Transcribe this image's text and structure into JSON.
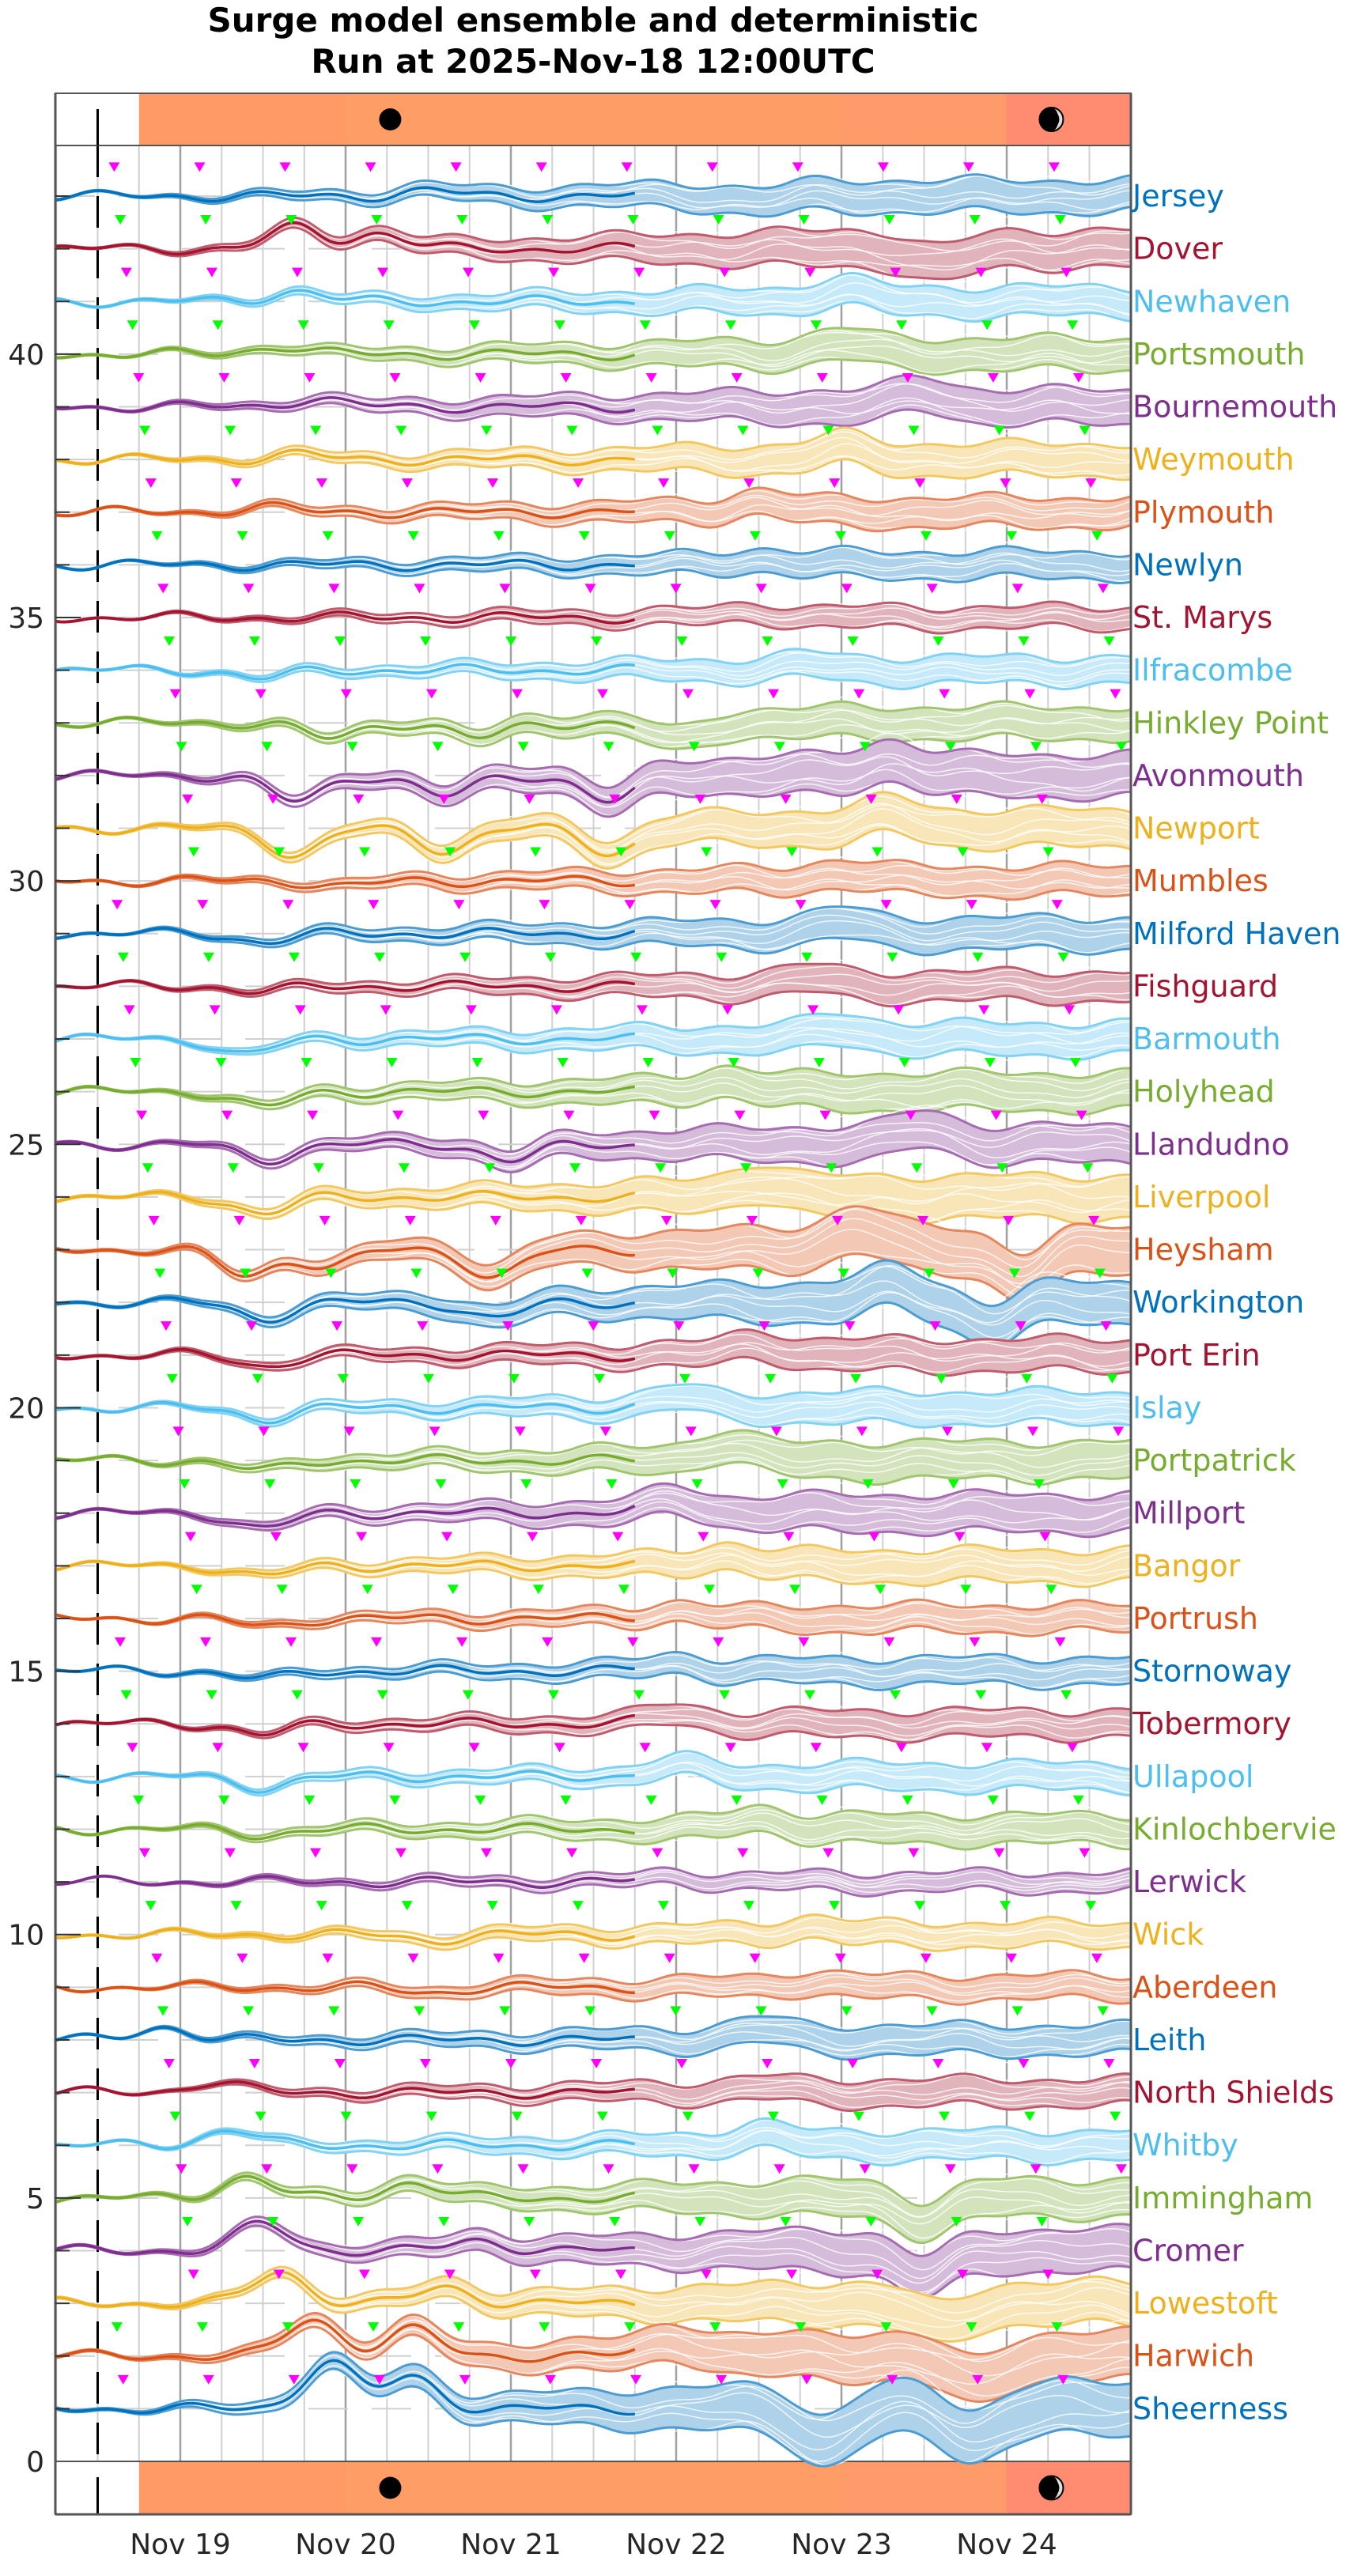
{
  "title": {
    "line1": "Surge model ensemble and deterministic",
    "line2": "Run at 2025-Nov-18 12:00UTC"
  },
  "colors": {
    "blue": "#0072BD",
    "red": "#A2142F",
    "cyan": "#4DBEEE",
    "green": "#77AC30",
    "purple": "#7E2F8E",
    "yellow": "#EDB120",
    "orange": "#D95319",
    "marker_magenta": "#FF00FF",
    "marker_green": "#00FF00",
    "band_segments": [
      "#FF9966",
      "#FF9D66",
      "#FF9A6A",
      "#FF8C70"
    ],
    "grid": "#D0D0D0",
    "day_grid": "#A0A0A0"
  },
  "moon_band": {
    "segments_days": [
      [
        -0.25,
        1.0
      ],
      [
        1.0,
        4.0
      ],
      [
        4.0,
        5.0
      ],
      [
        5.0,
        5.75
      ]
    ],
    "moons": [
      {
        "day": 1.27,
        "phase": "full-moon-icon"
      },
      {
        "day": 5.27,
        "phase": "waning-moon-icon"
      }
    ]
  },
  "chart_data": {
    "type": "line",
    "title": "Surge model ensemble and deterministic\nRun at 2025-Nov-18 12:00UTC",
    "xlabel": "",
    "ylabel": "",
    "x_tick_labels": [
      "Nov 19",
      "Nov 20",
      "Nov 21",
      "Nov 22",
      "Nov 23",
      "Nov 24"
    ],
    "x_range_days_from_nov19": [
      -0.75,
      5.75
    ],
    "run_time_marker_day": -0.5,
    "y_ticks": [
      0,
      5,
      10,
      15,
      20,
      25,
      30,
      35,
      40
    ],
    "ylim": [
      0,
      43.9
    ],
    "grid": true,
    "description": "Stacked surge traces per tide-gauge station; each station offset by 1 unit. Deterministic (dark) and ensemble (light spread) lines.",
    "stations": [
      {
        "name": "Jersey",
        "offset": 43,
        "color": "blue",
        "spread": 0.6,
        "features": [
          [
            1.5,
            0.1
          ],
          [
            3.5,
            -0.1
          ]
        ]
      },
      {
        "name": "Dover",
        "offset": 42,
        "color": "red",
        "spread": 0.7,
        "features": [
          [
            0.7,
            0.4
          ],
          [
            1.2,
            0.3
          ],
          [
            4.6,
            -0.3
          ]
        ]
      },
      {
        "name": "Newhaven",
        "offset": 41,
        "color": "cyan",
        "spread": 0.55,
        "features": [
          [
            0.7,
            0.2
          ],
          [
            4.0,
            0.2
          ]
        ]
      },
      {
        "name": "Portsmouth",
        "offset": 40,
        "color": "green",
        "spread": 0.6,
        "features": [
          [
            0.6,
            0.15
          ],
          [
            4.0,
            0.2
          ]
        ]
      },
      {
        "name": "Bournemouth",
        "offset": 39,
        "color": "purple",
        "spread": 0.65,
        "features": [
          [
            0.8,
            0.15
          ],
          [
            4.5,
            0.25
          ]
        ]
      },
      {
        "name": "Weymouth",
        "offset": 38,
        "color": "yellow",
        "spread": 0.6,
        "features": [
          [
            0.7,
            0.1
          ],
          [
            4.0,
            0.2
          ]
        ]
      },
      {
        "name": "Plymouth",
        "offset": 37,
        "color": "orange",
        "spread": 0.55,
        "features": [
          [
            0.5,
            0.1
          ],
          [
            3.5,
            0.2
          ]
        ]
      },
      {
        "name": "Newlyn",
        "offset": 36,
        "color": "blue",
        "spread": 0.5,
        "features": [
          [
            3.5,
            0.1
          ]
        ]
      },
      {
        "name": "St. Marys",
        "offset": 35,
        "color": "red",
        "spread": 0.4,
        "features": [
          [
            3.5,
            0.1
          ]
        ]
      },
      {
        "name": "Ilfracombe",
        "offset": 34,
        "color": "cyan",
        "spread": 0.5,
        "features": [
          [
            0.5,
            -0.15
          ],
          [
            3.8,
            0.1
          ]
        ]
      },
      {
        "name": "Hinkley Point",
        "offset": 33,
        "color": "green",
        "spread": 0.6,
        "features": [
          [
            0.9,
            -0.3
          ],
          [
            1.8,
            -0.3
          ],
          [
            3.0,
            -0.35
          ]
        ]
      },
      {
        "name": "Avonmouth",
        "offset": 32,
        "color": "purple",
        "spread": 0.8,
        "features": [
          [
            0.7,
            -0.5
          ],
          [
            1.6,
            -0.4
          ],
          [
            2.6,
            -0.5
          ],
          [
            4.3,
            0.3
          ]
        ]
      },
      {
        "name": "Newport",
        "offset": 31,
        "color": "yellow",
        "spread": 0.7,
        "features": [
          [
            0.7,
            -0.5
          ],
          [
            1.6,
            -0.4
          ],
          [
            2.6,
            -0.45
          ],
          [
            4.3,
            0.25
          ]
        ]
      },
      {
        "name": "Mumbles",
        "offset": 30,
        "color": "orange",
        "spread": 0.55,
        "features": [
          [
            1.0,
            -0.1
          ],
          [
            4.0,
            0.15
          ]
        ]
      },
      {
        "name": "Milford Haven",
        "offset": 29,
        "color": "blue",
        "spread": 0.6,
        "features": [
          [
            0.5,
            -0.15
          ],
          [
            4.0,
            0.2
          ]
        ]
      },
      {
        "name": "Fishguard",
        "offset": 28,
        "color": "red",
        "spread": 0.55,
        "features": [
          [
            0.5,
            -0.1
          ],
          [
            3.8,
            0.15
          ]
        ]
      },
      {
        "name": "Barmouth",
        "offset": 27,
        "color": "cyan",
        "spread": 0.6,
        "features": [
          [
            0.4,
            -0.3
          ],
          [
            4.0,
            0.2
          ]
        ]
      },
      {
        "name": "Holyhead",
        "offset": 26,
        "color": "green",
        "spread": 0.7,
        "features": [
          [
            0.5,
            -0.3
          ],
          [
            3.3,
            0.2
          ]
        ]
      },
      {
        "name": "Llandudno",
        "offset": 25,
        "color": "purple",
        "spread": 0.7,
        "features": [
          [
            0.5,
            -0.3
          ],
          [
            2.0,
            -0.3
          ],
          [
            4.5,
            0.3
          ]
        ]
      },
      {
        "name": "Liverpool",
        "offset": 24,
        "color": "yellow",
        "spread": 0.8,
        "features": [
          [
            0.5,
            -0.3
          ],
          [
            3.5,
            0.3
          ]
        ]
      },
      {
        "name": "Heysham",
        "offset": 23,
        "color": "orange",
        "spread": 0.9,
        "features": [
          [
            0.4,
            -0.5
          ],
          [
            0.9,
            -0.3
          ],
          [
            1.9,
            -0.5
          ],
          [
            4.1,
            0.4
          ],
          [
            5.1,
            -0.5
          ]
        ]
      },
      {
        "name": "Workington",
        "offset": 22,
        "color": "blue",
        "spread": 0.8,
        "features": [
          [
            0.5,
            -0.3
          ],
          [
            1.9,
            -0.3
          ],
          [
            4.3,
            0.3
          ],
          [
            4.9,
            -0.4
          ]
        ]
      },
      {
        "name": "Port Erin",
        "offset": 21,
        "color": "red",
        "spread": 0.6,
        "features": [
          [
            0.5,
            -0.2
          ],
          [
            3.5,
            0.2
          ]
        ]
      },
      {
        "name": "Islay",
        "offset": 20,
        "color": "cyan",
        "spread": 0.6,
        "features": [
          [
            0.5,
            -0.2
          ],
          [
            3.0,
            0.2
          ]
        ]
      },
      {
        "name": "Portpatrick",
        "offset": 19,
        "color": "green",
        "spread": 0.7,
        "features": [
          [
            0.5,
            -0.2
          ],
          [
            3.3,
            0.3
          ]
        ]
      },
      {
        "name": "Millport",
        "offset": 18,
        "color": "purple",
        "spread": 0.7,
        "features": [
          [
            0.5,
            -0.3
          ],
          [
            3.0,
            0.25
          ]
        ]
      },
      {
        "name": "Bangor",
        "offset": 17,
        "color": "yellow",
        "spread": 0.6,
        "features": [
          [
            0.5,
            -0.2
          ],
          [
            3.3,
            0.2
          ]
        ]
      },
      {
        "name": "Portrush",
        "offset": 16,
        "color": "orange",
        "spread": 0.5,
        "features": [
          [
            0.5,
            -0.15
          ],
          [
            3.0,
            0.15
          ]
        ]
      },
      {
        "name": "Stornoway",
        "offset": 15,
        "color": "blue",
        "spread": 0.5,
        "features": [
          [
            0.5,
            -0.15
          ],
          [
            3.0,
            0.15
          ]
        ]
      },
      {
        "name": "Tobermory",
        "offset": 14,
        "color": "red",
        "spread": 0.5,
        "features": [
          [
            0.5,
            -0.2
          ],
          [
            3.0,
            0.2
          ]
        ]
      },
      {
        "name": "Ullapool",
        "offset": 13,
        "color": "cyan",
        "spread": 0.5,
        "features": [
          [
            0.5,
            -0.2
          ],
          [
            3.0,
            0.2
          ]
        ]
      },
      {
        "name": "Kinlochbervie",
        "offset": 12,
        "color": "green",
        "spread": 0.55,
        "features": [
          [
            0.5,
            -0.1
          ],
          [
            3.5,
            0.2
          ]
        ]
      },
      {
        "name": "Lerwick",
        "offset": 11,
        "color": "purple",
        "spread": 0.35,
        "features": [
          [
            3.0,
            0.1
          ]
        ]
      },
      {
        "name": "Wick",
        "offset": 10,
        "color": "yellow",
        "spread": 0.45,
        "features": [
          [
            1.5,
            -0.1
          ],
          [
            3.8,
            0.15
          ]
        ]
      },
      {
        "name": "Aberdeen",
        "offset": 9,
        "color": "orange",
        "spread": 0.45,
        "features": [
          [
            1.5,
            -0.1
          ],
          [
            3.8,
            0.1
          ]
        ]
      },
      {
        "name": "Leith",
        "offset": 8,
        "color": "blue",
        "spread": 0.55,
        "features": [
          [
            -0.1,
            0.25
          ],
          [
            3.5,
            0.2
          ]
        ]
      },
      {
        "name": "North Shields",
        "offset": 7,
        "color": "red",
        "spread": 0.5,
        "features": [
          [
            0.2,
            0.2
          ],
          [
            3.5,
            0.1
          ]
        ]
      },
      {
        "name": "Whitby",
        "offset": 6,
        "color": "cyan",
        "spread": 0.55,
        "features": [
          [
            0.3,
            0.3
          ],
          [
            3.5,
            0.2
          ]
        ]
      },
      {
        "name": "Immingham",
        "offset": 5,
        "color": "green",
        "spread": 0.7,
        "features": [
          [
            0.4,
            0.4
          ],
          [
            1.4,
            0.3
          ],
          [
            4.5,
            -0.4
          ]
        ]
      },
      {
        "name": "Cromer",
        "offset": 4,
        "color": "purple",
        "spread": 0.8,
        "features": [
          [
            0.5,
            0.5
          ],
          [
            1.8,
            0.2
          ],
          [
            4.5,
            -0.5
          ]
        ]
      },
      {
        "name": "Lowestoft",
        "offset": 3,
        "color": "yellow",
        "spread": 0.8,
        "features": [
          [
            0.6,
            0.6
          ],
          [
            1.6,
            0.3
          ],
          [
            4.6,
            -0.4
          ]
        ]
      },
      {
        "name": "Harwich",
        "offset": 2,
        "color": "orange",
        "spread": 0.9,
        "features": [
          [
            0.8,
            0.7
          ],
          [
            1.4,
            0.5
          ],
          [
            3.0,
            0.3
          ],
          [
            4.8,
            -0.5
          ]
        ]
      },
      {
        "name": "Sheerness",
        "offset": 1,
        "color": "blue",
        "spread": 1.0,
        "features": [
          [
            0.9,
            0.9
          ],
          [
            1.4,
            0.6
          ],
          [
            3.9,
            -0.6
          ],
          [
            4.8,
            -0.5
          ]
        ]
      }
    ]
  }
}
